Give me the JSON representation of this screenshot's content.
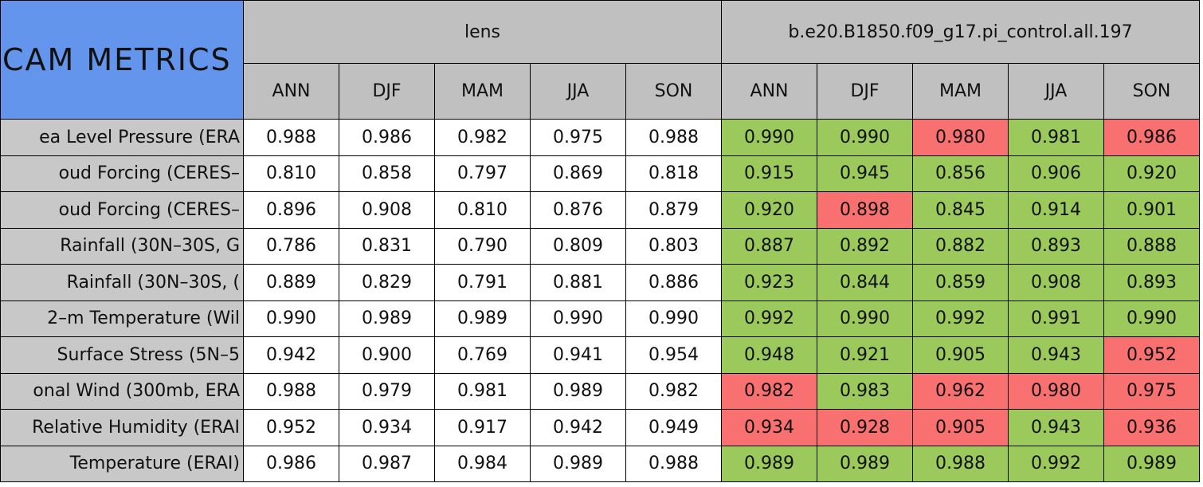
{
  "header": {
    "corner": "CAM METRICS",
    "groups": [
      "lens",
      "b.e20.B1850.f09_g17.pi_control.all.197"
    ],
    "seasons": [
      "ANN",
      "DJF",
      "MAM",
      "JJA",
      "SON"
    ]
  },
  "colors": {
    "good": "#9bc95b",
    "bad": "#f87070"
  },
  "rows": [
    {
      "label": "ea Level Pressure (ERA",
      "lens": [
        "0.988",
        "0.986",
        "0.982",
        "0.975",
        "0.988"
      ],
      "case": [
        "0.990",
        "0.990",
        "0.980",
        "0.981",
        "0.986"
      ],
      "status": [
        "good",
        "good",
        "bad",
        "good",
        "bad"
      ]
    },
    {
      "label": "oud Forcing (CERES–",
      "lens": [
        "0.810",
        "0.858",
        "0.797",
        "0.869",
        "0.818"
      ],
      "case": [
        "0.915",
        "0.945",
        "0.856",
        "0.906",
        "0.920"
      ],
      "status": [
        "good",
        "good",
        "good",
        "good",
        "good"
      ]
    },
    {
      "label": "oud Forcing (CERES–",
      "lens": [
        "0.896",
        "0.908",
        "0.810",
        "0.876",
        "0.879"
      ],
      "case": [
        "0.920",
        "0.898",
        "0.845",
        "0.914",
        "0.901"
      ],
      "status": [
        "good",
        "bad",
        "good",
        "good",
        "good"
      ]
    },
    {
      "label": "Rainfall (30N–30S, G",
      "lens": [
        "0.786",
        "0.831",
        "0.790",
        "0.809",
        "0.803"
      ],
      "case": [
        "0.887",
        "0.892",
        "0.882",
        "0.893",
        "0.888"
      ],
      "status": [
        "good",
        "good",
        "good",
        "good",
        "good"
      ]
    },
    {
      "label": "Rainfall (30N–30S, (",
      "lens": [
        "0.889",
        "0.829",
        "0.791",
        "0.881",
        "0.886"
      ],
      "case": [
        "0.923",
        "0.844",
        "0.859",
        "0.908",
        "0.893"
      ],
      "status": [
        "good",
        "good",
        "good",
        "good",
        "good"
      ]
    },
    {
      "label": "2–m Temperature (Wil",
      "lens": [
        "0.990",
        "0.989",
        "0.989",
        "0.990",
        "0.990"
      ],
      "case": [
        "0.992",
        "0.990",
        "0.992",
        "0.991",
        "0.990"
      ],
      "status": [
        "good",
        "good",
        "good",
        "good",
        "good"
      ]
    },
    {
      "label": "Surface Stress (5N–5",
      "lens": [
        "0.942",
        "0.900",
        "0.769",
        "0.941",
        "0.954"
      ],
      "case": [
        "0.948",
        "0.921",
        "0.905",
        "0.943",
        "0.952"
      ],
      "status": [
        "good",
        "good",
        "good",
        "good",
        "bad"
      ]
    },
    {
      "label": "onal Wind (300mb, ERA",
      "lens": [
        "0.988",
        "0.979",
        "0.981",
        "0.989",
        "0.982"
      ],
      "case": [
        "0.982",
        "0.983",
        "0.962",
        "0.980",
        "0.975"
      ],
      "status": [
        "bad",
        "good",
        "bad",
        "bad",
        "bad"
      ]
    },
    {
      "label": "Relative Humidity (ERAI",
      "lens": [
        "0.952",
        "0.934",
        "0.917",
        "0.942",
        "0.949"
      ],
      "case": [
        "0.934",
        "0.928",
        "0.905",
        "0.943",
        "0.936"
      ],
      "status": [
        "bad",
        "bad",
        "bad",
        "good",
        "bad"
      ]
    },
    {
      "label": "Temperature (ERAI)",
      "lens": [
        "0.986",
        "0.987",
        "0.984",
        "0.989",
        "0.988"
      ],
      "case": [
        "0.989",
        "0.989",
        "0.988",
        "0.992",
        "0.989"
      ],
      "status": [
        "good",
        "good",
        "good",
        "good",
        "good"
      ]
    }
  ]
}
